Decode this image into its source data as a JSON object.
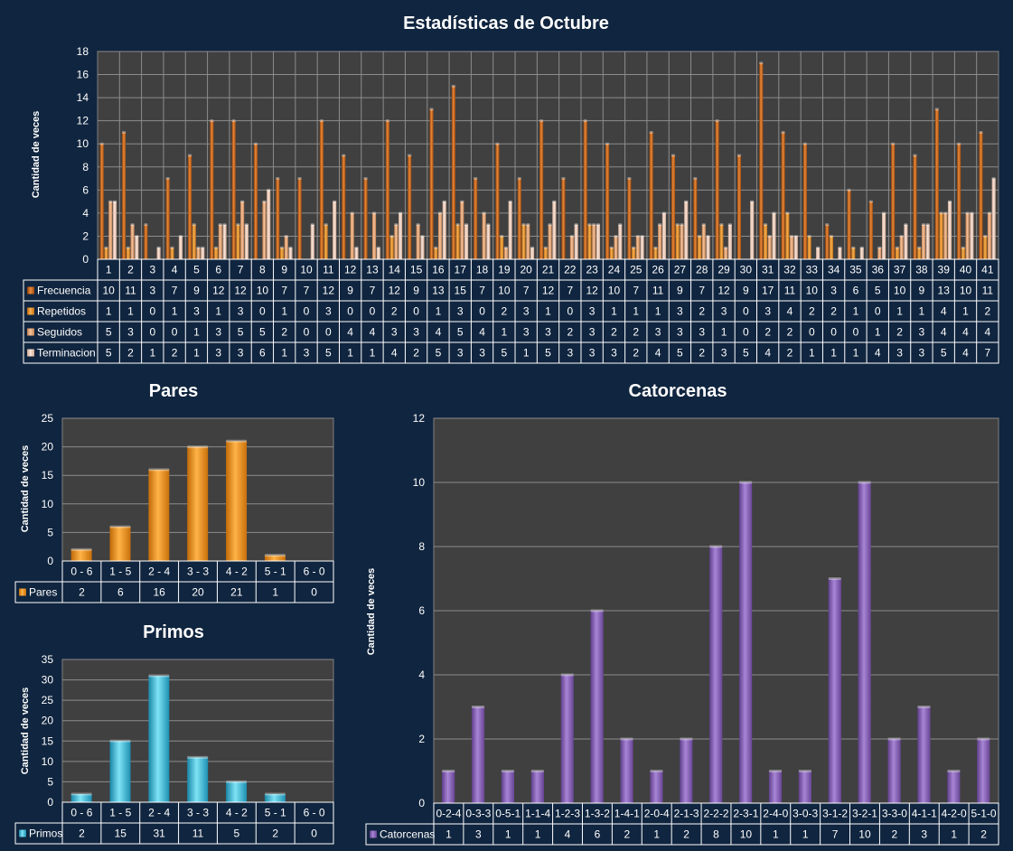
{
  "colors": {
    "background": "#10253f",
    "plot": "#404040",
    "frecuencia": "#d8741d",
    "repetidos": "#ef9d3d",
    "seguidos": "#efb27e",
    "terminacion": "#f6d3c0",
    "pares": "#f08c12",
    "primos": "#31b8d8",
    "catorcenas": "#8860b8"
  },
  "chart_data": [
    {
      "type": "bar",
      "title": "Estadísticas de Octubre",
      "ylabel": "Cantidad de veces",
      "ylim": [
        0,
        18
      ],
      "yticks": [
        0,
        2,
        4,
        6,
        8,
        10,
        12,
        14,
        16,
        18
      ],
      "categories": [
        "1",
        "2",
        "3",
        "4",
        "5",
        "6",
        "7",
        "8",
        "9",
        "10",
        "11",
        "12",
        "13",
        "14",
        "15",
        "16",
        "17",
        "18",
        "19",
        "20",
        "21",
        "22",
        "23",
        "24",
        "25",
        "26",
        "27",
        "28",
        "29",
        "30",
        "31",
        "32",
        "33",
        "34",
        "35",
        "36",
        "37",
        "38",
        "39",
        "40",
        "41"
      ],
      "series": [
        {
          "name": "Frecuencia",
          "values": [
            10,
            11,
            3,
            7,
            9,
            12,
            12,
            10,
            7,
            7,
            12,
            9,
            7,
            12,
            9,
            13,
            15,
            7,
            10,
            7,
            12,
            7,
            12,
            10,
            7,
            11,
            9,
            7,
            12,
            9,
            17,
            11,
            10,
            3,
            6,
            5,
            10,
            9,
            13,
            10,
            11
          ]
        },
        {
          "name": "Repetidos",
          "values": [
            1,
            1,
            0,
            1,
            3,
            1,
            3,
            0,
            1,
            0,
            3,
            0,
            0,
            2,
            0,
            1,
            3,
            0,
            2,
            3,
            1,
            0,
            3,
            1,
            1,
            1,
            3,
            2,
            3,
            0,
            3,
            4,
            2,
            2,
            1,
            0,
            1,
            1,
            4,
            1,
            2
          ]
        },
        {
          "name": "Seguidos",
          "values": [
            5,
            3,
            0,
            0,
            1,
            3,
            5,
            5,
            2,
            0,
            0,
            4,
            4,
            3,
            3,
            4,
            5,
            4,
            1,
            3,
            3,
            2,
            3,
            2,
            2,
            3,
            3,
            3,
            1,
            0,
            2,
            2,
            0,
            0,
            0,
            1,
            2,
            3,
            4,
            4,
            4
          ]
        },
        {
          "name": "Terminacion",
          "values": [
            5,
            2,
            1,
            2,
            1,
            3,
            3,
            6,
            1,
            3,
            5,
            1,
            1,
            4,
            2,
            5,
            3,
            3,
            5,
            1,
            5,
            3,
            3,
            3,
            2,
            4,
            5,
            2,
            3,
            5,
            4,
            2,
            1,
            1,
            1,
            4,
            3,
            3,
            5,
            4,
            7
          ]
        }
      ],
      "legend": "table-below"
    },
    {
      "type": "bar",
      "title": "Pares",
      "ylabel": "Cantidad de veces",
      "ylim": [
        0,
        25
      ],
      "yticks": [
        0,
        5,
        10,
        15,
        20,
        25
      ],
      "categories": [
        "0 - 6",
        "1 - 5",
        "2 - 4",
        "3 - 3",
        "4 - 2",
        "5 - 1",
        "6 - 0"
      ],
      "series": [
        {
          "name": "Pares",
          "values": [
            2,
            6,
            16,
            20,
            21,
            1,
            0
          ]
        }
      ],
      "legend": "table-below"
    },
    {
      "type": "bar",
      "title": "Primos",
      "ylabel": "Cantidad de veces",
      "ylim": [
        0,
        35
      ],
      "yticks": [
        0,
        5,
        10,
        15,
        20,
        25,
        30,
        35
      ],
      "categories": [
        "0 - 6",
        "1 - 5",
        "2 - 4",
        "3 - 3",
        "4 - 2",
        "5 - 1",
        "6 - 0"
      ],
      "series": [
        {
          "name": "Primos",
          "values": [
            2,
            15,
            31,
            11,
            5,
            2,
            0
          ]
        }
      ],
      "legend": "table-below"
    },
    {
      "type": "bar",
      "title": "Catorcenas",
      "ylabel": "Cantidad de veces",
      "ylim": [
        0,
        12
      ],
      "yticks": [
        0,
        2,
        4,
        6,
        8,
        10,
        12
      ],
      "categories": [
        "0-2-4",
        "0-3-3",
        "0-5-1",
        "1-1-4",
        "1-2-3",
        "1-3-2",
        "1-4-1",
        "2-0-4",
        "2-1-3",
        "2-2-2",
        "2-3-1",
        "2-4-0",
        "3-0-3",
        "3-1-2",
        "3-2-1",
        "3-3-0",
        "4-1-1",
        "4-2-0",
        "5-1-0"
      ],
      "series": [
        {
          "name": "Catorcenas",
          "values": [
            1,
            3,
            1,
            1,
            4,
            6,
            2,
            1,
            2,
            8,
            10,
            1,
            1,
            7,
            10,
            2,
            3,
            1,
            2
          ]
        }
      ],
      "legend": "table-below"
    }
  ]
}
